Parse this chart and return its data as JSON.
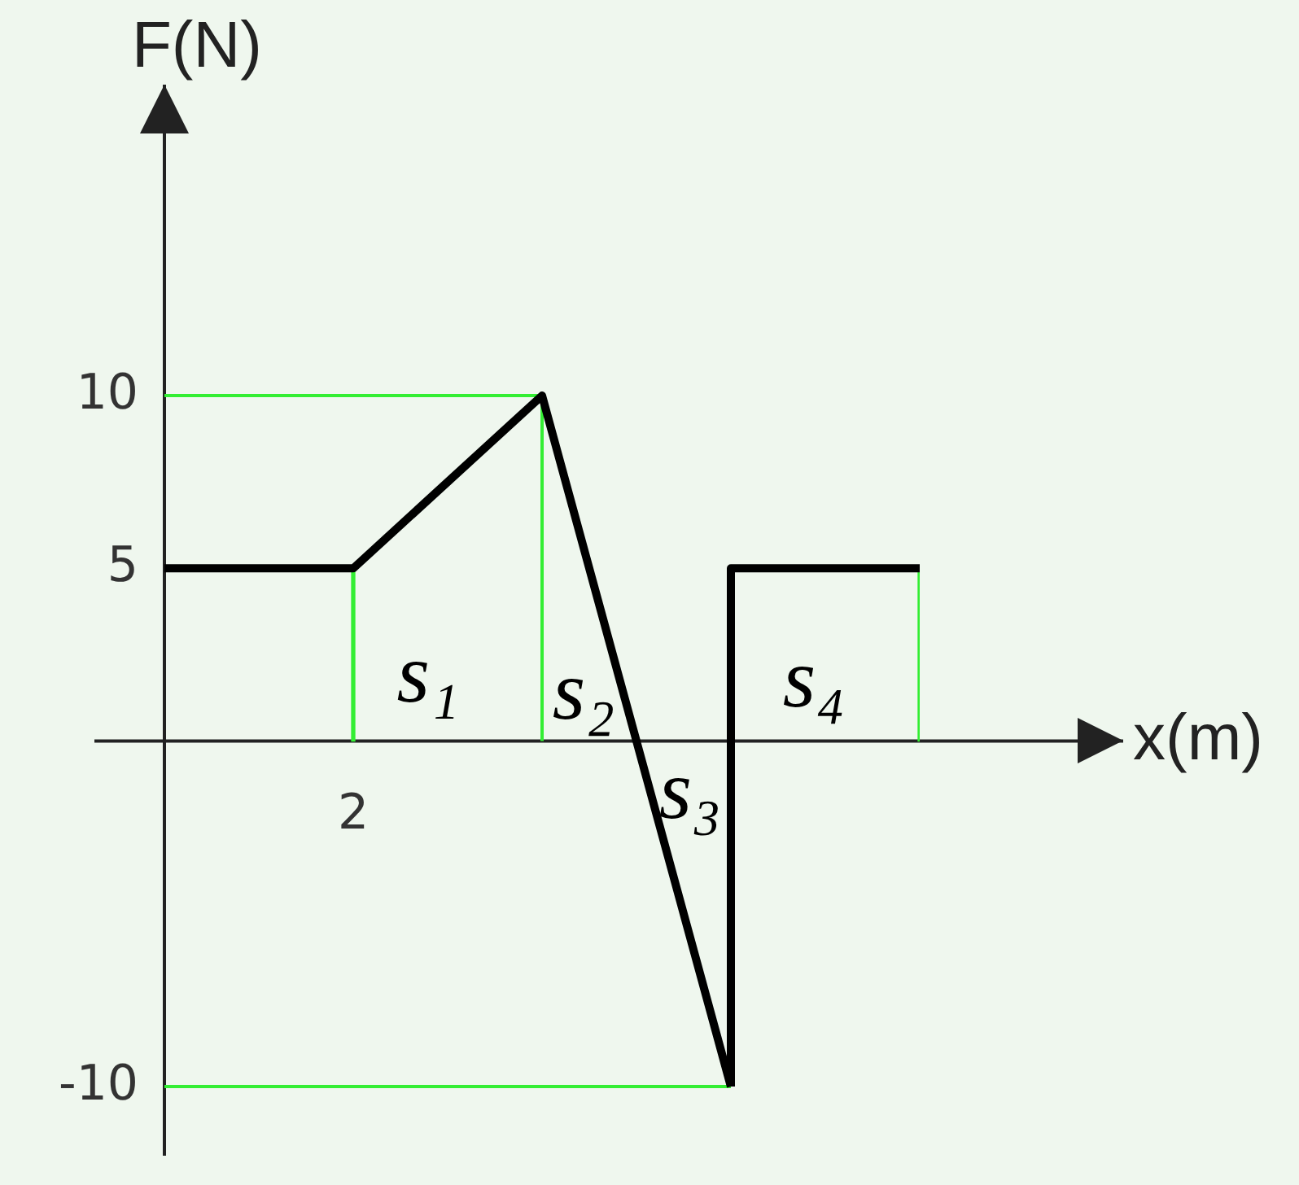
{
  "chart_data": {
    "type": "line",
    "xlabel": "x(m)",
    "ylabel": "F(N)",
    "categories": [
      null,
      "2",
      null,
      null,
      null
    ],
    "ylim": [
      -12,
      19
    ],
    "yticks": [
      -10,
      5,
      10
    ],
    "series": [
      {
        "color": "#000000",
        "values": [
          5,
          5,
          10,
          -10,
          null
        ]
      },
      {
        "type": "step",
        "color": "#000000",
        "values": [
          null,
          null,
          null,
          -10,
          5
        ]
      },
      {
        "color": "#33ee33",
        "values": [
          10,
          10,
          10,
          null,
          null
        ],
        "errors": [
          null,
          null,
          [
            0,
            10
          ],
          null,
          null
        ]
      },
      {
        "color": "#33ee33",
        "values": [
          -10,
          -10,
          -10,
          -10,
          null
        ]
      },
      {
        "type": "bar",
        "color": "#33ee33",
        "values": [
          null,
          5,
          null,
          null,
          5
        ]
      }
    ],
    "annotations": [
      "s₁",
      "s₂",
      "s₃",
      "s₄"
    ]
  }
}
